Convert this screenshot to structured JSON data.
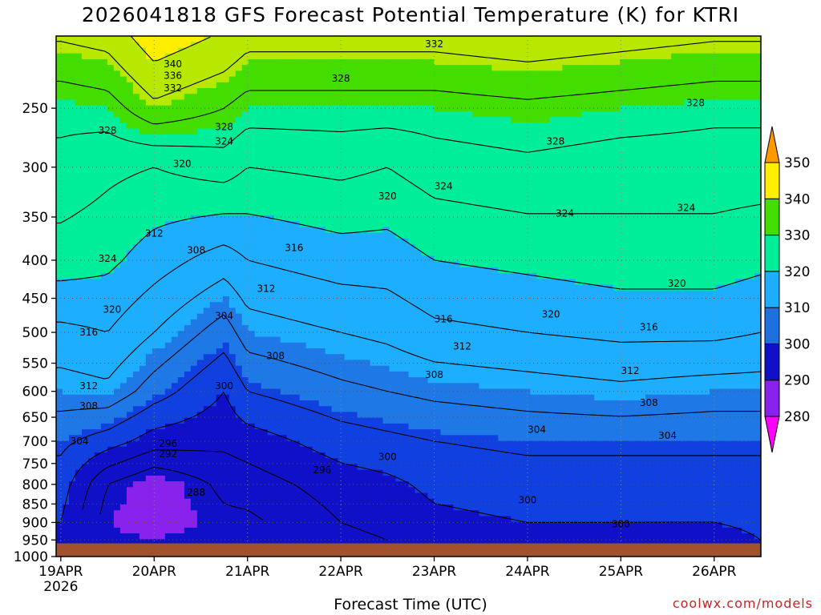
{
  "title": "2026041818 GFS Forecast Potential Temperature (K) for KTRI",
  "credit": "coolwx.com/models",
  "chart_data": {
    "type": "heatmap",
    "title": "2026041818 GFS Forecast Potential Temperature (K) for KTRI",
    "xlabel": "Forecast Time (UTC)",
    "ylabel": "",
    "x_ticks": [
      {
        "label": "19APR",
        "sub": "2026",
        "t": 0
      },
      {
        "label": "20APR",
        "sub": "",
        "t": 1
      },
      {
        "label": "21APR",
        "sub": "",
        "t": 2
      },
      {
        "label": "22APR",
        "sub": "",
        "t": 3
      },
      {
        "label": "23APR",
        "sub": "",
        "t": 4
      },
      {
        "label": "24APR",
        "sub": "",
        "t": 5
      },
      {
        "label": "25APR",
        "sub": "",
        "t": 6
      },
      {
        "label": "26APR",
        "sub": "",
        "t": 7
      }
    ],
    "xlim": [
      -0.05,
      7.5
    ],
    "y_ticks": [
      250,
      300,
      350,
      400,
      450,
      500,
      550,
      600,
      650,
      700,
      750,
      800,
      850,
      900,
      950,
      1000
    ],
    "ylim_hPa": [
      200,
      1000
    ],
    "y_scale": "log-pressure",
    "surface_pressure_hPa": 960,
    "colorbar": {
      "levels": [
        280,
        290,
        300,
        310,
        320,
        330,
        340,
        350
      ],
      "colors": [
        "#ff00ff",
        "#8a22ee",
        "#2f16c8",
        "#0000ee",
        "#1e6fe0",
        "#1eaeff",
        "#00ee9a",
        "#22dd55",
        "#44cc00",
        "#ffff00",
        "#ff9900"
      ]
    },
    "profiles": [
      {
        "t": 0.0,
        "theta": {
          "250": 329,
          "300": 327,
          "400": 322,
          "500": 315,
          "600": 310,
          "700": 305,
          "800": 302,
          "900": 300,
          "950": 299
        }
      },
      {
        "t": 0.5,
        "theta": {
          "250": 330,
          "300": 325,
          "400": 321,
          "500": 316,
          "600": 311,
          "700": 302,
          "800": 292,
          "900": 290,
          "950": 291
        }
      },
      {
        "t": 1.0,
        "theta": {
          "250": 335,
          "300": 324,
          "400": 318,
          "500": 312,
          "600": 306,
          "700": 298,
          "800": 288,
          "900": 288,
          "950": 290
        }
      },
      {
        "t": 1.75,
        "theta": {
          "250": 332,
          "300": 326,
          "400": 314,
          "500": 306,
          "600": 300,
          "700": 297,
          "800": 293,
          "900": 291,
          "950": 292
        }
      },
      {
        "t": 2.0,
        "theta": {
          "250": 330,
          "300": 324,
          "400": 316,
          "500": 310,
          "600": 304,
          "700": 298,
          "800": 294,
          "900": 291,
          "950": 292
        }
      },
      {
        "t": 3.0,
        "theta": {
          "250": 330,
          "300": 325,
          "400": 318,
          "500": 312,
          "600": 307,
          "700": 302,
          "800": 298,
          "900": 296,
          "950": 295
        }
      },
      {
        "t": 3.5,
        "theta": {
          "250": 330,
          "300": 324,
          "400": 318,
          "500": 313,
          "600": 308,
          "700": 303,
          "800": 299,
          "900": 297,
          "950": 296
        }
      },
      {
        "t": 4.0,
        "theta": {
          "250": 330,
          "300": 326,
          "400": 320,
          "500": 315,
          "600": 309,
          "700": 304,
          "800": 301,
          "900": 299,
          "950": 298
        }
      },
      {
        "t": 5.0,
        "theta": {
          "250": 331,
          "300": 327,
          "400": 321,
          "500": 316,
          "600": 310,
          "700": 305,
          "800": 302,
          "900": 300,
          "950": 299
        }
      },
      {
        "t": 6.0,
        "theta": {
          "250": 330,
          "300": 326,
          "400": 322,
          "500": 317,
          "600": 311,
          "700": 305,
          "800": 302,
          "900": 300,
          "950": 299
        }
      },
      {
        "t": 7.0,
        "theta": {
          "250": 329,
          "300": 326,
          "400": 322,
          "500": 317,
          "600": 310,
          "700": 305,
          "800": 302,
          "900": 300,
          "950": 298
        }
      },
      {
        "t": 7.5,
        "theta": {
          "250": 329,
          "300": 326,
          "400": 321,
          "500": 316,
          "600": 310,
          "700": 305,
          "800": 302,
          "900": 301,
          "950": 300
        }
      }
    ],
    "contour_labels": [
      {
        "text": "332",
        "t": 4.0,
        "p": 205
      },
      {
        "text": "340",
        "t": 1.2,
        "p": 218
      },
      {
        "text": "336",
        "t": 1.2,
        "p": 226
      },
      {
        "text": "332",
        "t": 1.2,
        "p": 235
      },
      {
        "text": "328",
        "t": 3.0,
        "p": 228
      },
      {
        "text": "328",
        "t": 6.8,
        "p": 246
      },
      {
        "text": "328",
        "t": 0.5,
        "p": 268
      },
      {
        "text": "328",
        "t": 1.75,
        "p": 265
      },
      {
        "text": "324",
        "t": 1.75,
        "p": 277
      },
      {
        "text": "328",
        "t": 5.3,
        "p": 277
      },
      {
        "text": "320",
        "t": 1.3,
        "p": 297
      },
      {
        "text": "324",
        "t": 4.1,
        "p": 318
      },
      {
        "text": "320",
        "t": 3.5,
        "p": 328
      },
      {
        "text": "324",
        "t": 5.4,
        "p": 346
      },
      {
        "text": "324",
        "t": 6.7,
        "p": 340
      },
      {
        "text": "312",
        "t": 1.0,
        "p": 368
      },
      {
        "text": "308",
        "t": 1.45,
        "p": 388
      },
      {
        "text": "316",
        "t": 2.5,
        "p": 385
      },
      {
        "text": "324",
        "t": 0.5,
        "p": 398
      },
      {
        "text": "312",
        "t": 2.2,
        "p": 437
      },
      {
        "text": "320",
        "t": 6.6,
        "p": 430
      },
      {
        "text": "320",
        "t": 0.55,
        "p": 466
      },
      {
        "text": "304",
        "t": 1.75,
        "p": 475
      },
      {
        "text": "320",
        "t": 5.25,
        "p": 473
      },
      {
        "text": "316",
        "t": 4.1,
        "p": 480
      },
      {
        "text": "316",
        "t": 0.3,
        "p": 500
      },
      {
        "text": "316",
        "t": 6.3,
        "p": 492
      },
      {
        "text": "312",
        "t": 4.3,
        "p": 522
      },
      {
        "text": "308",
        "t": 2.3,
        "p": 538
      },
      {
        "text": "312",
        "t": 6.1,
        "p": 563
      },
      {
        "text": "308",
        "t": 4.0,
        "p": 570
      },
      {
        "text": "312",
        "t": 0.3,
        "p": 590
      },
      {
        "text": "300",
        "t": 1.75,
        "p": 590
      },
      {
        "text": "308",
        "t": 0.3,
        "p": 628
      },
      {
        "text": "308",
        "t": 6.3,
        "p": 622
      },
      {
        "text": "304",
        "t": 5.1,
        "p": 675
      },
      {
        "text": "304",
        "t": 6.5,
        "p": 688
      },
      {
        "text": "304",
        "t": 0.2,
        "p": 700
      },
      {
        "text": "296",
        "t": 1.15,
        "p": 705
      },
      {
        "text": "292",
        "t": 1.15,
        "p": 728
      },
      {
        "text": "300",
        "t": 3.5,
        "p": 735
      },
      {
        "text": "296",
        "t": 2.8,
        "p": 765
      },
      {
        "text": "288",
        "t": 1.45,
        "p": 820
      },
      {
        "text": "300",
        "t": 5.0,
        "p": 840
      },
      {
        "text": "300",
        "t": 6.0,
        "p": 905
      }
    ]
  }
}
